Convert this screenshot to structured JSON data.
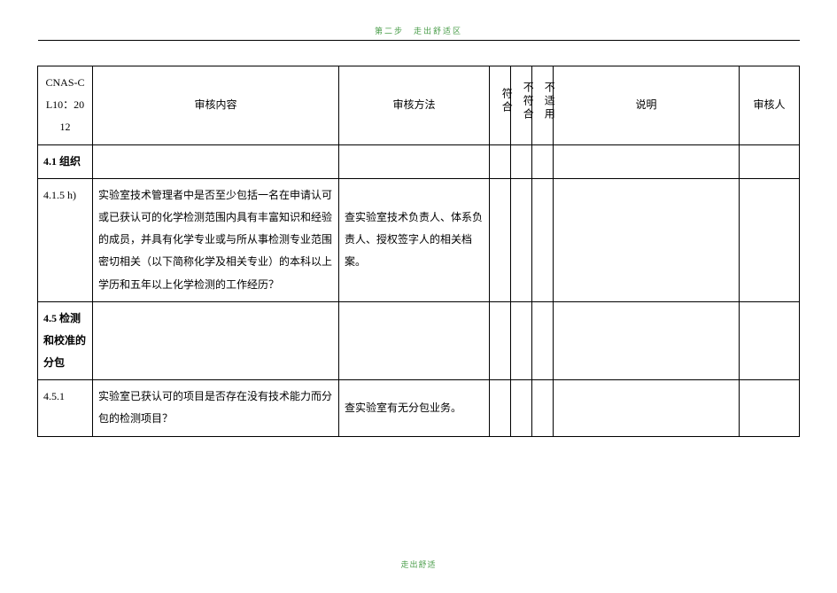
{
  "page": {
    "header_text": "第二步　走出舒适区",
    "footer_text": "走出舒适"
  },
  "columns": {
    "code": "CNAS-CL10：2012",
    "content": "审核内容",
    "method": "审核方法",
    "conform": "符合",
    "nonconform": "不符合",
    "na": "不适用",
    "desc": "说明",
    "auditor": "审核人"
  },
  "rows": {
    "sec41": {
      "code": "4.1  组织"
    },
    "r415h": {
      "code": "4.1.5  h)",
      "content": "实验室技术管理者中是否至少包括一名在申请认可或已获认可的化学检测范围内具有丰富知识和经验的成员，并具有化学专业或与所从事检测专业范围密切相关（以下简称化学及相关专业）的本科以上学历和五年以上化学检测的工作经历？",
      "method": "查实验室技术负责人、体系负责人、授权签字人的相关档案。"
    },
    "sec45": {
      "code": "4.5 检测和校准的分包"
    },
    "r4511": {
      "code": "4.5.1",
      "content": "实验室已获认可的项目是否存在没有技术能力而分包的检测项目？",
      "method": "查实验室有无分包业务。"
    }
  }
}
